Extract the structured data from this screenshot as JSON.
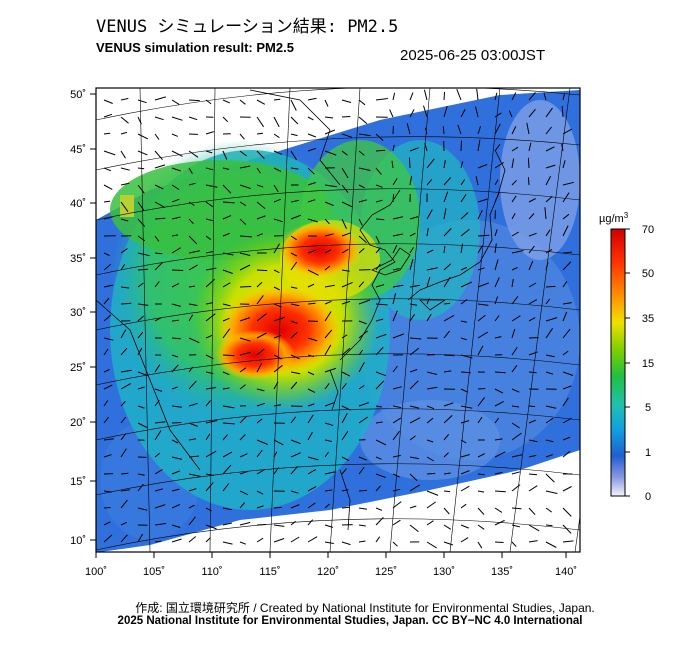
{
  "header": {
    "title_jp": "VENUS シミュレーション結果: PM2.5",
    "title_en": "VENUS simulation result: PM2.5",
    "timestamp": "2025-06-25 03:00JST"
  },
  "map": {
    "lon_ticks": [
      "100˚",
      "105˚",
      "110˚",
      "115˚",
      "120˚",
      "125˚",
      "130˚",
      "135˚",
      "140˚"
    ],
    "lat_ticks": [
      "50˚",
      "45˚",
      "40˚",
      "35˚",
      "30˚",
      "25˚",
      "20˚",
      "15˚",
      "10˚"
    ]
  },
  "colorbar": {
    "unit": "µg/m",
    "unit_sup": "3",
    "labels": [
      "70",
      "50",
      "35",
      "15",
      "5",
      "1",
      "0"
    ],
    "colors": [
      "#d80000",
      "#ff4000",
      "#ffb000",
      "#f0f000",
      "#40d000",
      "#20c060",
      "#20c0b0",
      "#1090e0",
      "#2050d0",
      "#8090e0",
      "#e8eaf6"
    ]
  },
  "credits": {
    "line1": "作成: 国立環境研究所 / Created by National Institute for Environmental Studies, Japan.",
    "line2": "2025 National Institute for Environmental Studies, Japan. CC BY−NC 4.0 International"
  }
}
